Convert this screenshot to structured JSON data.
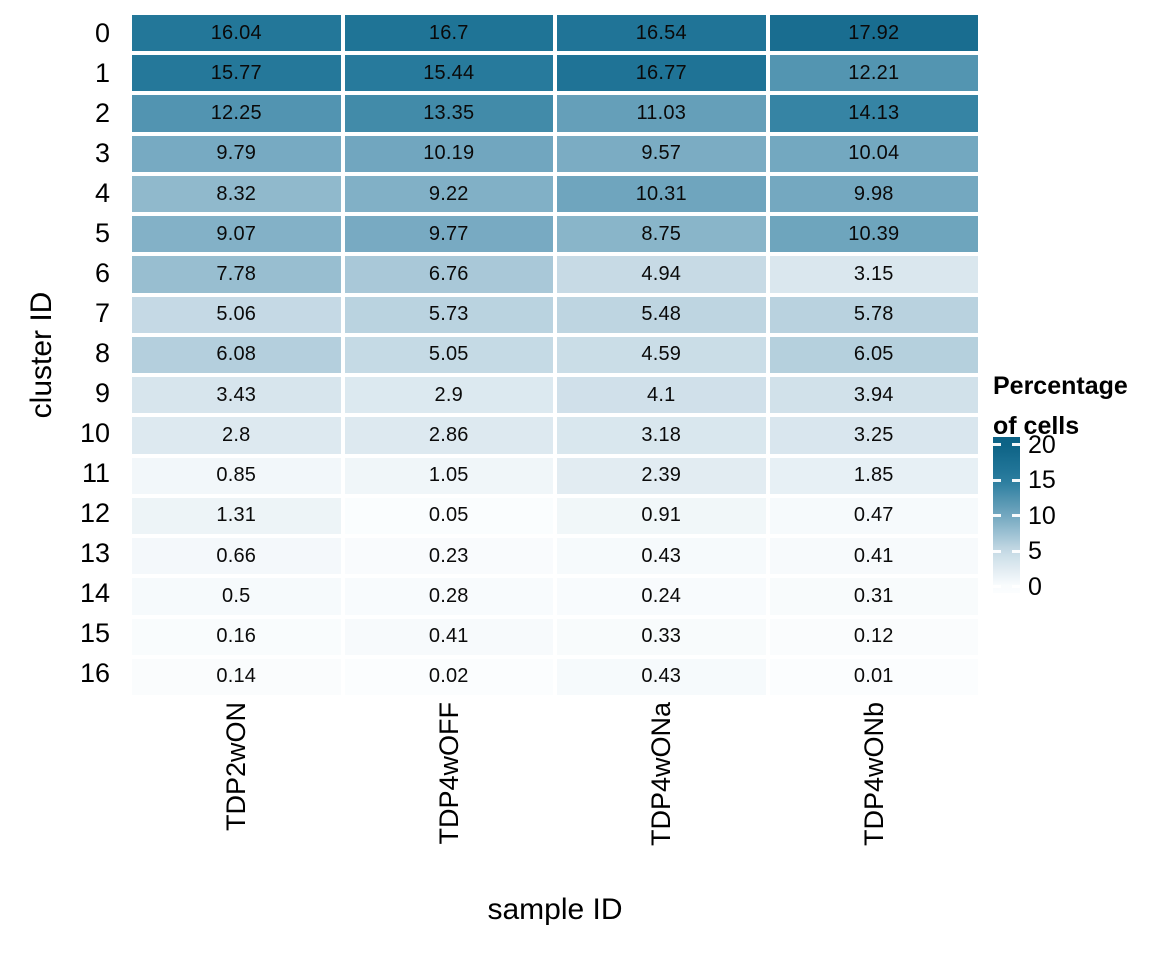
{
  "chart_data": {
    "type": "heatmap",
    "xlabel": "sample ID",
    "ylabel": "cluster ID",
    "categories_x": [
      "TDP2wON",
      "TDP4wOFF",
      "TDP4wONa",
      "TDP4wONb"
    ],
    "categories_y": [
      "0",
      "1",
      "2",
      "3",
      "4",
      "5",
      "6",
      "7",
      "8",
      "9",
      "10",
      "11",
      "12",
      "13",
      "14",
      "15",
      "16"
    ],
    "series": [
      {
        "name": "TDP2wON",
        "values": [
          16.04,
          15.77,
          12.25,
          9.79,
          8.32,
          9.07,
          7.78,
          5.06,
          6.08,
          3.43,
          2.8,
          0.85,
          1.31,
          0.66,
          0.5,
          0.16,
          0.14
        ]
      },
      {
        "name": "TDP4wOFF",
        "values": [
          16.7,
          15.44,
          13.35,
          10.19,
          9.22,
          9.77,
          6.76,
          5.73,
          5.05,
          2.9,
          2.86,
          1.05,
          0.05,
          0.23,
          0.28,
          0.41,
          0.02
        ]
      },
      {
        "name": "TDP4wONa",
        "values": [
          16.54,
          16.77,
          11.03,
          9.57,
          10.31,
          8.75,
          4.94,
          5.48,
          4.59,
          4.1,
          3.18,
          2.39,
          0.91,
          0.43,
          0.24,
          0.33,
          0.43
        ]
      },
      {
        "name": "TDP4wONb",
        "values": [
          17.92,
          12.21,
          14.13,
          10.04,
          9.98,
          10.39,
          3.15,
          5.78,
          6.05,
          3.94,
          3.25,
          1.85,
          0.47,
          0.41,
          0.31,
          0.12,
          0.01
        ]
      }
    ],
    "legend": {
      "title_line1": "Percentage",
      "title_line2": "of cells",
      "ticks": [
        20,
        15,
        10,
        5,
        0
      ],
      "range": [
        0,
        20
      ],
      "position": "right"
    },
    "colors": {
      "scale_stops": [
        {
          "value": 0,
          "color": "#FBFDFE"
        },
        {
          "value": 5,
          "color": "#C6DAE5"
        },
        {
          "value": 10,
          "color": "#74A8C0"
        },
        {
          "value": 15,
          "color": "#297C9E"
        },
        {
          "value": 20,
          "color": "#0D6386"
        }
      ],
      "grid_gap": "#FFFFFF",
      "text": "#000000"
    },
    "layout": {
      "grid_on": false,
      "x_tick_rotation": -90
    }
  }
}
